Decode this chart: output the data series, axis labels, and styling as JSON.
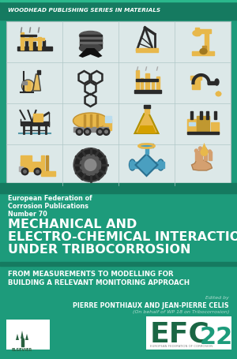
{
  "bg_color": "#1d9b7b",
  "top_bar_color": "#157a60",
  "text_panel_color": "#1a8a6e",
  "series_text": "WOODHEAD PUBLISHING SERIES IN MATERIALS",
  "series_text_color": "#ffffff",
  "series_text_fontsize": 5.2,
  "image_panel_bg": "#dce8e8",
  "image_panel_border": "#1d9b7b",
  "efoc_label_line1": "European Federation of",
  "efoc_label_line2": "Corrosion Publications",
  "efoc_label_line3": "Number 70",
  "efoc_fontsize": 5.8,
  "efoc_color": "#ffffff",
  "title_line1": "MECHANICAL AND",
  "title_line2": "ELECTRO-CHEMICAL INTERACTIONS",
  "title_line3": "UNDER TRIBOCORROSION",
  "title_color": "#ffffff",
  "title_fontsize": 11.5,
  "subtitle_line1": "FROM MEASUREMENTS TO MODELLING FOR",
  "subtitle_line2": "BUILDING A RELEVANT MONITORING APPROACH",
  "subtitle_color": "#ffffff",
  "subtitle_fontsize": 6.2,
  "edited_by": "Edited by",
  "authors": "PIERRE PONTHIAUX AND JEAN-PIERRE CELIS",
  "authors_sub": "(On behalf of WP 18 on Tribocorrosion)",
  "authors_color": "#ffffff",
  "authors_fontsize": 5.8,
  "authors_sub_fontsize": 4.5,
  "efc_text": "EFC",
  "efc_fontsize": 26,
  "efc_num": "22",
  "efc_num_color": "#1d9b7b",
  "yellow": "#e8b84b",
  "dark": "#2a2a2a",
  "blue_icon": "#4a9fc0"
}
